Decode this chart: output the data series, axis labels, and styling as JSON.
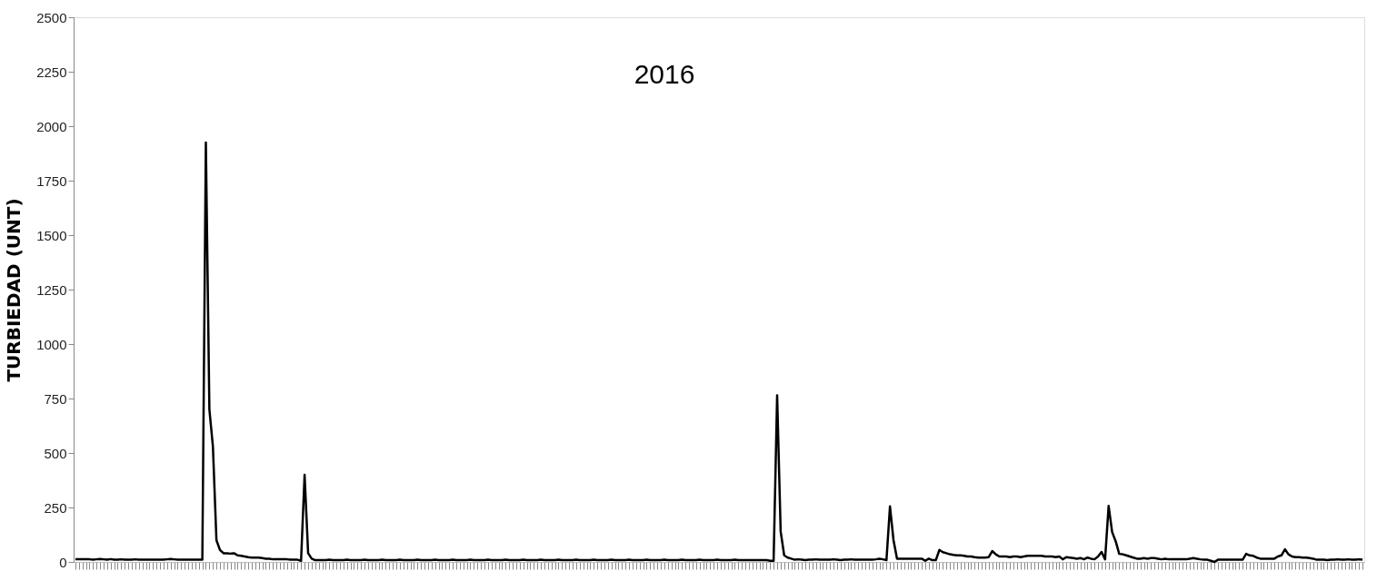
{
  "chart_data": {
    "type": "line",
    "title": "2016",
    "ylabel": "TURBIEDAD (UNT)",
    "categories": [
      null,
      null,
      null,
      null,
      null,
      null,
      null,
      null,
      null,
      null,
      null,
      null,
      null,
      null,
      null,
      null,
      null,
      null,
      null,
      null,
      null,
      null,
      null,
      null,
      null,
      null,
      null,
      null,
      null,
      null,
      null,
      null,
      null,
      null,
      null,
      null,
      null,
      null,
      null,
      null,
      null,
      null,
      null,
      null,
      null,
      null,
      null,
      null,
      null,
      null,
      null,
      null,
      null,
      null,
      null,
      null,
      null,
      null,
      null,
      null,
      null,
      null,
      null,
      null,
      null,
      null,
      null,
      null,
      null,
      null,
      null,
      null,
      null,
      null,
      null,
      null,
      null,
      null,
      null,
      null,
      null,
      null,
      null,
      null,
      null,
      null,
      null,
      null,
      null,
      null,
      null,
      null,
      null,
      null,
      null,
      null,
      null,
      null,
      null,
      null,
      null,
      null,
      null,
      null,
      null,
      null,
      null,
      null,
      null,
      null,
      null,
      null,
      null,
      null,
      null,
      null,
      null,
      null,
      null,
      null,
      null,
      null,
      null,
      null,
      null,
      null,
      null,
      null,
      null,
      null,
      null,
      null,
      null,
      null,
      null,
      null,
      null,
      null,
      null,
      null,
      null,
      null,
      null,
      null,
      null,
      null,
      null,
      null,
      null,
      null,
      null,
      null,
      null,
      null,
      null,
      null,
      null,
      null,
      null,
      null,
      null,
      null,
      null,
      null,
      null,
      null,
      null,
      null,
      null,
      null,
      null,
      null,
      null,
      null,
      null,
      null,
      null,
      null,
      null,
      null,
      null,
      null,
      null,
      null,
      null,
      null,
      null,
      null,
      null,
      null,
      null,
      null,
      null,
      null,
      null,
      null,
      null,
      null,
      null,
      null,
      null,
      null,
      null,
      null,
      null,
      null,
      null,
      null,
      null,
      null,
      null,
      null,
      null,
      null,
      null,
      null,
      null,
      null,
      null,
      null,
      null,
      null,
      null,
      null,
      null,
      null,
      null,
      null,
      null,
      null,
      null,
      null,
      null,
      null,
      null,
      null,
      null,
      null,
      null,
      null,
      null,
      null,
      null,
      null,
      null,
      null,
      null,
      null,
      null,
      null,
      null,
      null,
      null,
      null,
      null,
      null,
      null,
      null,
      null,
      null,
      null,
      null,
      null,
      null,
      null,
      null,
      null,
      null,
      null,
      null,
      null,
      null,
      null,
      null,
      null,
      null,
      null,
      null,
      null,
      null,
      null,
      null,
      null,
      null,
      null,
      null,
      null,
      null,
      null,
      null,
      null,
      null,
      null,
      null,
      null,
      null,
      null,
      null,
      null,
      null,
      null,
      null,
      null,
      null,
      null,
      null,
      null,
      null,
      null,
      null,
      null,
      null,
      null,
      null,
      null,
      null,
      null,
      null,
      null,
      null,
      null,
      null,
      null,
      null,
      null,
      null,
      null,
      null,
      null,
      null,
      null,
      null,
      null,
      null,
      null,
      null,
      null,
      null,
      null,
      null,
      null,
      null,
      null,
      null,
      null,
      null,
      null,
      null,
      null,
      null,
      null,
      null,
      null,
      null,
      null,
      null,
      null,
      null,
      null,
      null,
      null,
      null,
      null,
      null,
      null,
      null
    ],
    "series": [
      {
        "color": "#000000",
        "values": [
          12,
          12,
          12,
          12,
          12,
          10,
          12,
          14,
          12,
          10,
          13,
          10,
          10,
          12,
          10,
          10,
          10,
          12,
          10,
          10,
          10,
          10,
          10,
          10,
          10,
          10,
          12,
          14,
          12,
          10,
          10,
          10,
          10,
          10,
          10,
          10,
          10,
          1925,
          700,
          530,
          100,
          55,
          40,
          40,
          38,
          40,
          30,
          28,
          25,
          22,
          20,
          20,
          20,
          18,
          15,
          15,
          12,
          12,
          12,
          12,
          12,
          10,
          10,
          10,
          5,
          400,
          40,
          15,
          8,
          8,
          8,
          8,
          10,
          8,
          8,
          8,
          8,
          10,
          8,
          8,
          8,
          8,
          10,
          8,
          8,
          8,
          8,
          10,
          8,
          8,
          8,
          8,
          10,
          8,
          8,
          8,
          8,
          10,
          8,
          8,
          8,
          8,
          10,
          8,
          8,
          8,
          8,
          10,
          8,
          8,
          8,
          8,
          10,
          8,
          8,
          8,
          8,
          10,
          8,
          8,
          8,
          8,
          10,
          8,
          8,
          8,
          8,
          10,
          8,
          8,
          8,
          8,
          10,
          8,
          8,
          8,
          8,
          10,
          8,
          8,
          8,
          8,
          10,
          8,
          8,
          8,
          8,
          10,
          8,
          8,
          8,
          8,
          10,
          8,
          8,
          8,
          8,
          10,
          8,
          8,
          8,
          8,
          10,
          8,
          8,
          8,
          8,
          10,
          8,
          8,
          8,
          8,
          10,
          8,
          8,
          8,
          8,
          10,
          8,
          8,
          8,
          8,
          10,
          8,
          8,
          8,
          8,
          10,
          8,
          8,
          8,
          8,
          8,
          8,
          8,
          8,
          8,
          5,
          5,
          765,
          140,
          30,
          20,
          15,
          10,
          12,
          10,
          8,
          10,
          10,
          12,
          10,
          10,
          10,
          10,
          12,
          10,
          8,
          10,
          10,
          12,
          10,
          10,
          10,
          10,
          10,
          10,
          12,
          15,
          12,
          8,
          255,
          100,
          15,
          15,
          15,
          15,
          15,
          15,
          15,
          15,
          5,
          15,
          8,
          8,
          55,
          45,
          40,
          35,
          32,
          30,
          30,
          28,
          25,
          25,
          22,
          20,
          20,
          20,
          22,
          50,
          35,
          25,
          25,
          25,
          22,
          25,
          25,
          22,
          25,
          28,
          28,
          28,
          28,
          28,
          25,
          25,
          25,
          22,
          25,
          12,
          22,
          20,
          18,
          15,
          18,
          12,
          20,
          15,
          12,
          25,
          46,
          12,
          257,
          137,
          95,
          37,
          35,
          30,
          25,
          20,
          15,
          15,
          18,
          15,
          18,
          18,
          15,
          12,
          15,
          12,
          12,
          12,
          12,
          12,
          12,
          15,
          18,
          15,
          12,
          10,
          10,
          5,
          0,
          10,
          10,
          10,
          10,
          10,
          10,
          10,
          10,
          37,
          30,
          28,
          20,
          15,
          15,
          15,
          15,
          15,
          25,
          30,
          58,
          35,
          25,
          22,
          22,
          20,
          20,
          18,
          15,
          10,
          10,
          10,
          8,
          10,
          10,
          12,
          10,
          10,
          12,
          10,
          10,
          12,
          10
        ]
      }
    ],
    "ylim": [
      0,
      2500
    ],
    "yticks": [
      0,
      250,
      500,
      750,
      1000,
      1250,
      1500,
      1750,
      2000,
      2250,
      2500
    ],
    "grid": false,
    "tick_labels": "y",
    "line_style": "solid",
    "marker": "none"
  }
}
